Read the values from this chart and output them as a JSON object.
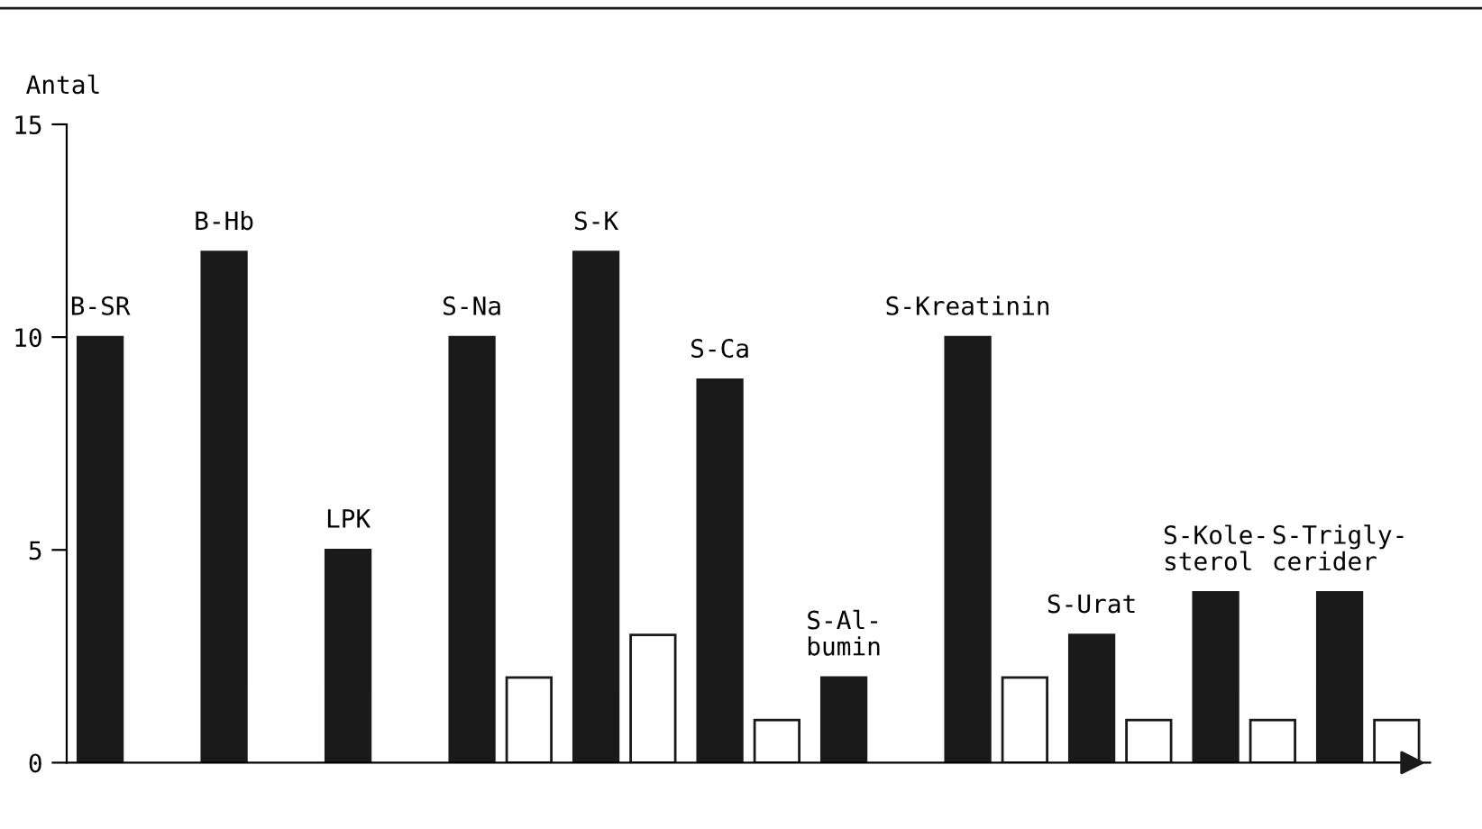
{
  "chart_data": {
    "type": "bar",
    "ylabel": "Antal",
    "categories": [
      "B-SR",
      "B-Hb",
      "LPK",
      "S-Na",
      "S-K",
      "S-Ca",
      "S-Al-\nbumin",
      "S-Kreatinin",
      "S-Urat",
      "S-Kole-\nsterol",
      "S-Trigly-\ncerider"
    ],
    "series": [
      {
        "color": "#1a1a1a",
        "values": [
          10,
          12,
          5,
          10,
          12,
          9,
          2,
          10,
          3,
          4,
          4
        ]
      },
      {
        "color": "#ffffff",
        "values": [
          null,
          null,
          null,
          2,
          3,
          1,
          null,
          2,
          1,
          1,
          1
        ]
      }
    ],
    "ylim": [
      0,
      15
    ],
    "yticks": [
      0,
      5,
      10,
      15
    ],
    "grid": false,
    "legend": false
  }
}
